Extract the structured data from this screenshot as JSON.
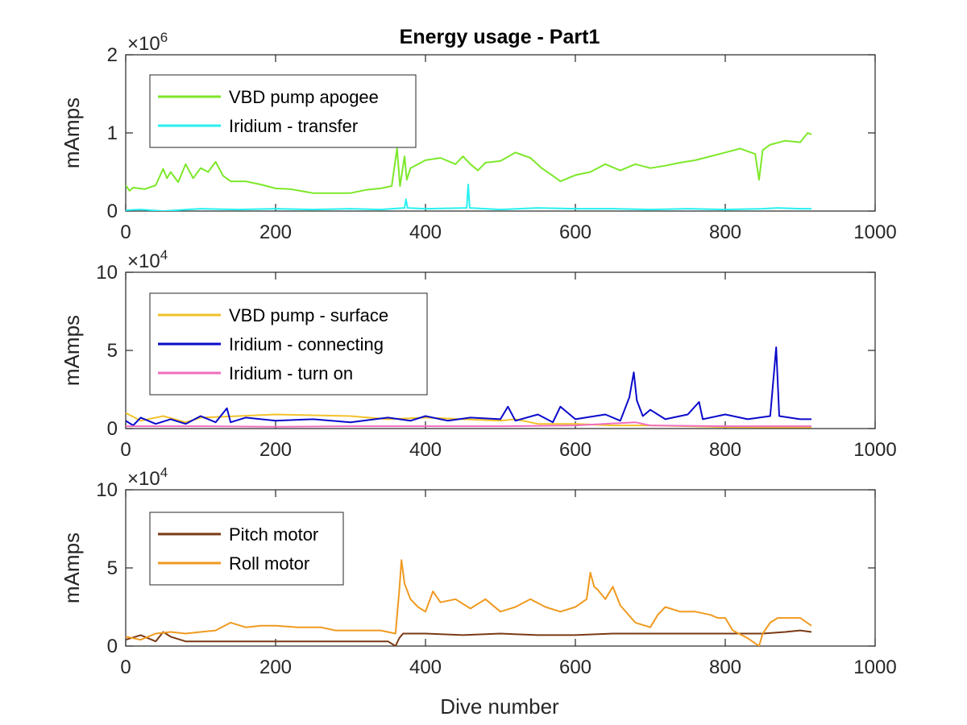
{
  "figure": {
    "title": "Energy usage - Part1",
    "xlabel": "Dive number"
  },
  "chart_data": [
    {
      "type": "line",
      "title": "Energy usage - Part1",
      "xlabel": "",
      "ylabel": "mAmps",
      "xlim": [
        0,
        1000
      ],
      "ylim": [
        0,
        2000000
      ],
      "xticks": [
        "0",
        "200",
        "400",
        "600",
        "800",
        "1000"
      ],
      "yticks": [
        "0",
        "1",
        "2"
      ],
      "y_exponent": "×10^6",
      "y_exp_base": "×10",
      "y_exp_power": "6",
      "legend_position": "top-left",
      "grid": false,
      "series": [
        {
          "name": "VBD pump apogee",
          "color": "#7de82a",
          "points": [
            [
              0,
              330000
            ],
            [
              5,
              260000
            ],
            [
              10,
              300000
            ],
            [
              25,
              280000
            ],
            [
              40,
              330000
            ],
            [
              50,
              540000
            ],
            [
              55,
              420000
            ],
            [
              60,
              500000
            ],
            [
              70,
              370000
            ],
            [
              80,
              600000
            ],
            [
              90,
              420000
            ],
            [
              100,
              550000
            ],
            [
              110,
              500000
            ],
            [
              120,
              630000
            ],
            [
              130,
              450000
            ],
            [
              140,
              380000
            ],
            [
              160,
              380000
            ],
            [
              180,
              340000
            ],
            [
              200,
              290000
            ],
            [
              220,
              280000
            ],
            [
              250,
              230000
            ],
            [
              280,
              230000
            ],
            [
              300,
              230000
            ],
            [
              320,
              270000
            ],
            [
              340,
              290000
            ],
            [
              355,
              320000
            ],
            [
              362,
              800000
            ],
            [
              366,
              320000
            ],
            [
              372,
              700000
            ],
            [
              375,
              400000
            ],
            [
              380,
              550000
            ],
            [
              400,
              650000
            ],
            [
              420,
              680000
            ],
            [
              440,
              600000
            ],
            [
              450,
              700000
            ],
            [
              460,
              600000
            ],
            [
              470,
              520000
            ],
            [
              480,
              620000
            ],
            [
              500,
              640000
            ],
            [
              520,
              750000
            ],
            [
              540,
              680000
            ],
            [
              555,
              550000
            ],
            [
              570,
              450000
            ],
            [
              580,
              380000
            ],
            [
              600,
              460000
            ],
            [
              620,
              500000
            ],
            [
              640,
              600000
            ],
            [
              660,
              520000
            ],
            [
              680,
              600000
            ],
            [
              700,
              550000
            ],
            [
              720,
              580000
            ],
            [
              740,
              620000
            ],
            [
              760,
              650000
            ],
            [
              780,
              700000
            ],
            [
              800,
              750000
            ],
            [
              820,
              800000
            ],
            [
              840,
              730000
            ],
            [
              845,
              400000
            ],
            [
              850,
              780000
            ],
            [
              860,
              850000
            ],
            [
              880,
              900000
            ],
            [
              900,
              880000
            ],
            [
              910,
              1000000
            ],
            [
              915,
              980000
            ]
          ]
        },
        {
          "name": "Iridium - transfer",
          "color": "#29f0f0",
          "points": [
            [
              0,
              10000
            ],
            [
              20,
              20000
            ],
            [
              50,
              0
            ],
            [
              100,
              30000
            ],
            [
              150,
              20000
            ],
            [
              200,
              30000
            ],
            [
              250,
              20000
            ],
            [
              300,
              30000
            ],
            [
              340,
              20000
            ],
            [
              372,
              40000
            ],
            [
              374,
              150000
            ],
            [
              376,
              40000
            ],
            [
              400,
              30000
            ],
            [
              455,
              40000
            ],
            [
              457,
              340000
            ],
            [
              459,
              40000
            ],
            [
              500,
              20000
            ],
            [
              550,
              40000
            ],
            [
              600,
              30000
            ],
            [
              650,
              30000
            ],
            [
              700,
              20000
            ],
            [
              750,
              30000
            ],
            [
              800,
              20000
            ],
            [
              850,
              30000
            ],
            [
              870,
              40000
            ],
            [
              900,
              30000
            ],
            [
              915,
              30000
            ]
          ]
        }
      ]
    },
    {
      "type": "line",
      "xlabel": "",
      "ylabel": "mAmps",
      "xlim": [
        0,
        1000
      ],
      "ylim": [
        0,
        100000
      ],
      "xticks": [
        "0",
        "200",
        "400",
        "600",
        "800",
        "1000"
      ],
      "yticks": [
        "0",
        "5",
        "10"
      ],
      "y_exponent": "×10^4",
      "y_exp_base": "×10",
      "y_exp_power": "4",
      "legend_position": "top-left",
      "grid": false,
      "series": [
        {
          "name": "VBD pump - surface",
          "color": "#f2c22a",
          "points": [
            [
              0,
              10000
            ],
            [
              20,
              5000
            ],
            [
              50,
              8000
            ],
            [
              80,
              4000
            ],
            [
              100,
              7000
            ],
            [
              150,
              8000
            ],
            [
              200,
              9000
            ],
            [
              250,
              8500
            ],
            [
              300,
              8000
            ],
            [
              350,
              6000
            ],
            [
              400,
              7000
            ],
            [
              450,
              6000
            ],
            [
              500,
              5000
            ],
            [
              520,
              6000
            ],
            [
              550,
              3000
            ],
            [
              600,
              3000
            ],
            [
              650,
              2000
            ],
            [
              700,
              2000
            ],
            [
              750,
              1500
            ],
            [
              800,
              1000
            ],
            [
              850,
              800
            ],
            [
              900,
              800
            ],
            [
              915,
              800
            ]
          ]
        },
        {
          "name": "Iridium - connecting",
          "color": "#0a0acc",
          "points": [
            [
              0,
              5000
            ],
            [
              10,
              2000
            ],
            [
              20,
              7000
            ],
            [
              40,
              3000
            ],
            [
              60,
              6000
            ],
            [
              80,
              3000
            ],
            [
              100,
              8000
            ],
            [
              120,
              4000
            ],
            [
              135,
              13000
            ],
            [
              140,
              4000
            ],
            [
              160,
              7000
            ],
            [
              200,
              5000
            ],
            [
              250,
              6000
            ],
            [
              300,
              4000
            ],
            [
              350,
              7000
            ],
            [
              380,
              5000
            ],
            [
              400,
              8000
            ],
            [
              430,
              5000
            ],
            [
              460,
              7000
            ],
            [
              500,
              6000
            ],
            [
              510,
              14000
            ],
            [
              520,
              5000
            ],
            [
              550,
              9000
            ],
            [
              570,
              4000
            ],
            [
              580,
              14000
            ],
            [
              600,
              6000
            ],
            [
              640,
              9000
            ],
            [
              660,
              5000
            ],
            [
              672,
              20000
            ],
            [
              678,
              36000
            ],
            [
              682,
              18000
            ],
            [
              690,
              8000
            ],
            [
              700,
              12000
            ],
            [
              720,
              6000
            ],
            [
              750,
              9000
            ],
            [
              765,
              17000
            ],
            [
              770,
              6000
            ],
            [
              800,
              9000
            ],
            [
              830,
              6000
            ],
            [
              860,
              8000
            ],
            [
              868,
              52000
            ],
            [
              872,
              8000
            ],
            [
              900,
              6000
            ],
            [
              915,
              6000
            ]
          ]
        },
        {
          "name": "Iridium - turn on",
          "color": "#ef6fbf",
          "points": [
            [
              0,
              1500
            ],
            [
              100,
              1500
            ],
            [
              200,
              1200
            ],
            [
              300,
              1500
            ],
            [
              400,
              1500
            ],
            [
              500,
              1500
            ],
            [
              600,
              2000
            ],
            [
              680,
              4000
            ],
            [
              700,
              2000
            ],
            [
              800,
              1500
            ],
            [
              900,
              1500
            ],
            [
              915,
              1500
            ]
          ]
        }
      ]
    },
    {
      "type": "line",
      "xlabel": "Dive number",
      "ylabel": "mAmps",
      "xlim": [
        0,
        1000
      ],
      "ylim": [
        0,
        100000
      ],
      "xticks": [
        "0",
        "200",
        "400",
        "600",
        "800",
        "1000"
      ],
      "yticks": [
        "0",
        "5",
        "10"
      ],
      "y_exponent": "×10^4",
      "y_exp_base": "×10",
      "y_exp_power": "4",
      "legend_position": "top-left",
      "grid": false,
      "series": [
        {
          "name": "Pitch motor",
          "color": "#7a3a14",
          "points": [
            [
              0,
              4000
            ],
            [
              20,
              7000
            ],
            [
              40,
              3000
            ],
            [
              50,
              9000
            ],
            [
              60,
              6000
            ],
            [
              80,
              3000
            ],
            [
              100,
              3000
            ],
            [
              150,
              3000
            ],
            [
              200,
              3000
            ],
            [
              250,
              3000
            ],
            [
              300,
              3000
            ],
            [
              350,
              3000
            ],
            [
              360,
              0
            ],
            [
              365,
              5000
            ],
            [
              370,
              8000
            ],
            [
              400,
              8000
            ],
            [
              450,
              7000
            ],
            [
              500,
              8000
            ],
            [
              550,
              7000
            ],
            [
              600,
              7000
            ],
            [
              650,
              8000
            ],
            [
              700,
              8000
            ],
            [
              750,
              8000
            ],
            [
              800,
              8000
            ],
            [
              850,
              8000
            ],
            [
              880,
              9000
            ],
            [
              900,
              10000
            ],
            [
              915,
              9000
            ]
          ]
        },
        {
          "name": "Roll motor",
          "color": "#f09a20",
          "points": [
            [
              0,
              6000
            ],
            [
              20,
              4000
            ],
            [
              40,
              8000
            ],
            [
              60,
              9000
            ],
            [
              80,
              8000
            ],
            [
              100,
              9000
            ],
            [
              120,
              10000
            ],
            [
              140,
              15000
            ],
            [
              160,
              12000
            ],
            [
              180,
              13000
            ],
            [
              200,
              13000
            ],
            [
              230,
              12000
            ],
            [
              260,
              12000
            ],
            [
              280,
              10000
            ],
            [
              300,
              10000
            ],
            [
              340,
              10000
            ],
            [
              360,
              8000
            ],
            [
              365,
              35000
            ],
            [
              368,
              55000
            ],
            [
              372,
              40000
            ],
            [
              380,
              30000
            ],
            [
              390,
              25000
            ],
            [
              400,
              22000
            ],
            [
              410,
              35000
            ],
            [
              420,
              28000
            ],
            [
              440,
              30000
            ],
            [
              460,
              24000
            ],
            [
              480,
              30000
            ],
            [
              500,
              22000
            ],
            [
              520,
              25000
            ],
            [
              540,
              30000
            ],
            [
              560,
              25000
            ],
            [
              580,
              22000
            ],
            [
              600,
              25000
            ],
            [
              615,
              30000
            ],
            [
              620,
              47000
            ],
            [
              625,
              38000
            ],
            [
              630,
              36000
            ],
            [
              640,
              30000
            ],
            [
              650,
              38000
            ],
            [
              660,
              26000
            ],
            [
              680,
              15000
            ],
            [
              700,
              12000
            ],
            [
              710,
              20000
            ],
            [
              720,
              25000
            ],
            [
              740,
              22000
            ],
            [
              760,
              22000
            ],
            [
              780,
              20000
            ],
            [
              790,
              18000
            ],
            [
              800,
              18000
            ],
            [
              810,
              10000
            ],
            [
              830,
              5000
            ],
            [
              845,
              0
            ],
            [
              850,
              8000
            ],
            [
              860,
              15000
            ],
            [
              870,
              18000
            ],
            [
              900,
              18000
            ],
            [
              915,
              13000
            ]
          ]
        }
      ]
    }
  ]
}
